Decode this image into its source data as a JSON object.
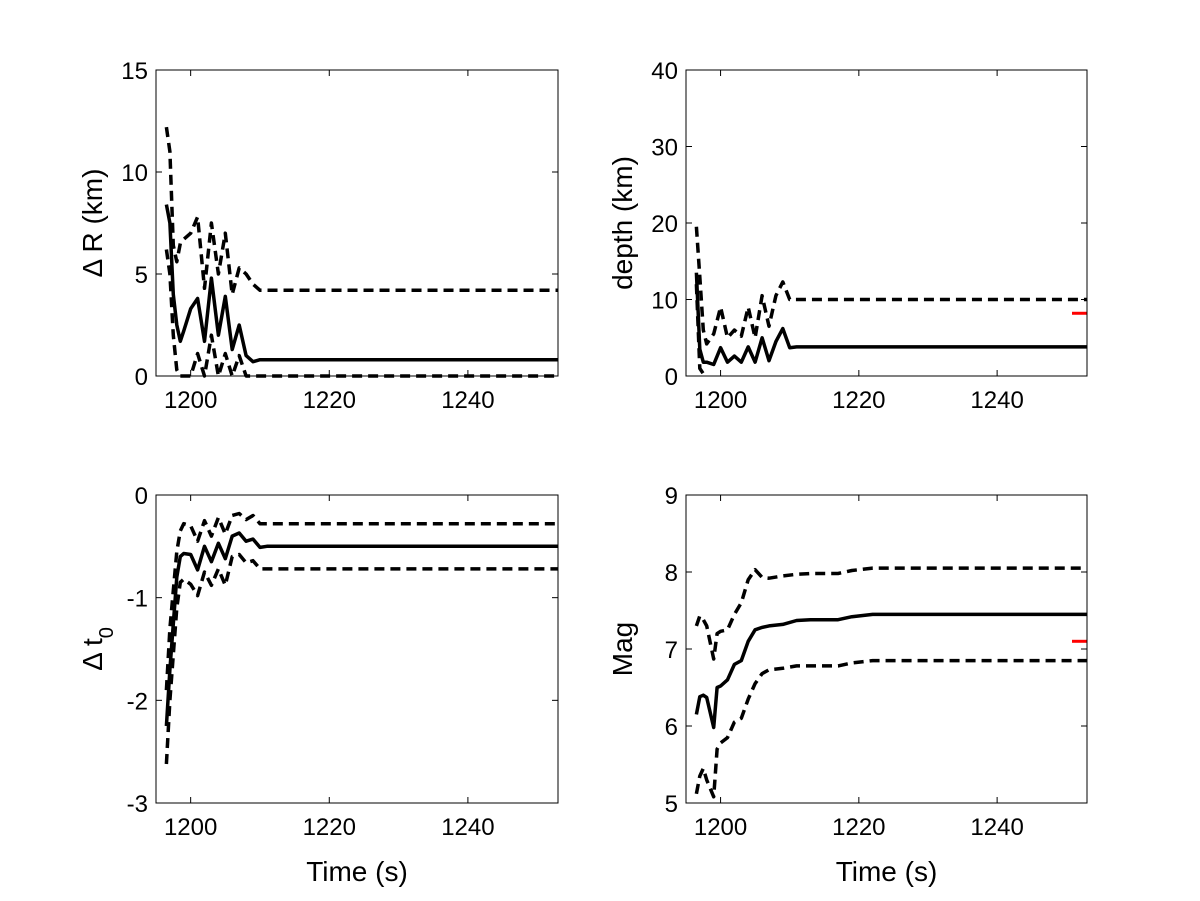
{
  "chart_data": [
    {
      "type": "line",
      "id": "delta-r",
      "ylabel": "Δ R (km)",
      "xlabel": "",
      "xlim": [
        1195,
        1253
      ],
      "ylim": [
        0,
        15
      ],
      "xticks": [
        1200,
        1220,
        1240
      ],
      "yticks": [
        0,
        5,
        10,
        15
      ],
      "grid": false,
      "series": [
        {
          "style": "solid",
          "points": [
            [
              1196.5,
              8.4
            ],
            [
              1197,
              7.5
            ],
            [
              1197.5,
              4.0
            ],
            [
              1198,
              2.5
            ],
            [
              1198.5,
              1.7
            ],
            [
              1199,
              2.2
            ],
            [
              1200,
              3.3
            ],
            [
              1201,
              3.8
            ],
            [
              1202,
              1.7
            ],
            [
              1203,
              4.8
            ],
            [
              1204,
              2.0
            ],
            [
              1205,
              3.9
            ],
            [
              1206,
              1.3
            ],
            [
              1207,
              2.5
            ],
            [
              1208,
              1.0
            ],
            [
              1209,
              0.7
            ],
            [
              1210,
              0.8
            ],
            [
              1211,
              0.8
            ],
            [
              1253,
              0.8
            ]
          ]
        },
        {
          "style": "dashed",
          "points": [
            [
              1196.5,
              12.2
            ],
            [
              1197,
              11.0
            ],
            [
              1197.5,
              6.4
            ],
            [
              1198,
              5.6
            ],
            [
              1198.5,
              6.5
            ],
            [
              1199,
              6.7
            ],
            [
              1200,
              7.0
            ],
            [
              1201,
              7.8
            ],
            [
              1202,
              4.3
            ],
            [
              1203,
              7.5
            ],
            [
              1204,
              5.0
            ],
            [
              1205,
              7.0
            ],
            [
              1206,
              4.0
            ],
            [
              1207,
              5.3
            ],
            [
              1208,
              5.0
            ],
            [
              1209,
              4.5
            ],
            [
              1210,
              4.2
            ],
            [
              1253,
              4.2
            ]
          ]
        },
        {
          "style": "dashed",
          "points": [
            [
              1196.5,
              6.2
            ],
            [
              1197,
              5.0
            ],
            [
              1197.5,
              2.0
            ],
            [
              1198,
              0.3
            ],
            [
              1198.5,
              0.0
            ],
            [
              1200,
              0.0
            ],
            [
              1201,
              1.1
            ],
            [
              1202,
              0.0
            ],
            [
              1203,
              2.0
            ],
            [
              1204,
              0.0
            ],
            [
              1205,
              1.1
            ],
            [
              1206,
              0.0
            ],
            [
              1207,
              1.0
            ],
            [
              1208,
              0.0
            ],
            [
              1253,
              0.0
            ]
          ]
        }
      ]
    },
    {
      "type": "line",
      "id": "depth",
      "ylabel": "depth (km)",
      "xlabel": "",
      "xlim": [
        1195,
        1253
      ],
      "ylim": [
        0,
        40
      ],
      "xticks": [
        1200,
        1220,
        1240
      ],
      "yticks": [
        0,
        10,
        20,
        30,
        40
      ],
      "grid": false,
      "reference_value": 8.2,
      "reference_color": "#ff0000",
      "series": [
        {
          "style": "solid",
          "points": [
            [
              1196.5,
              13.5
            ],
            [
              1197,
              3.5
            ],
            [
              1197.5,
              1.8
            ],
            [
              1198,
              1.8
            ],
            [
              1199,
              1.5
            ],
            [
              1200,
              3.7
            ],
            [
              1201,
              1.8
            ],
            [
              1202,
              2.6
            ],
            [
              1203,
              1.8
            ],
            [
              1204,
              3.8
            ],
            [
              1205,
              1.8
            ],
            [
              1206,
              5.0
            ],
            [
              1207,
              2.0
            ],
            [
              1208,
              4.5
            ],
            [
              1209,
              6.2
            ],
            [
              1210,
              3.7
            ],
            [
              1211,
              3.8
            ],
            [
              1253,
              3.8
            ]
          ]
        },
        {
          "style": "dashed",
          "points": [
            [
              1196.5,
              19.5
            ],
            [
              1197,
              13.0
            ],
            [
              1197.5,
              6.0
            ],
            [
              1198,
              4.2
            ],
            [
              1199,
              5.5
            ],
            [
              1200,
              9.0
            ],
            [
              1201,
              5.0
            ],
            [
              1202,
              6.0
            ],
            [
              1203,
              5.2
            ],
            [
              1204,
              9.0
            ],
            [
              1205,
              5.0
            ],
            [
              1206,
              10.5
            ],
            [
              1207,
              6.5
            ],
            [
              1208,
              10.5
            ],
            [
              1209,
              12.3
            ],
            [
              1210,
              10.0
            ],
            [
              1253,
              10.0
            ]
          ]
        },
        {
          "style": "dashed",
          "points": [
            [
              1196.5,
              12.0
            ],
            [
              1197,
              1.0
            ],
            [
              1197.5,
              0.3
            ],
            [
              1198,
              0.0
            ]
          ]
        }
      ]
    },
    {
      "type": "line",
      "id": "delta-t0",
      "ylabel": "Δ t0",
      "xlabel": "Time (s)",
      "xlim": [
        1195,
        1253
      ],
      "ylim": [
        -3,
        0
      ],
      "xticks": [
        1200,
        1220,
        1240
      ],
      "yticks": [
        -3,
        -2,
        -1,
        0
      ],
      "grid": false,
      "series": [
        {
          "style": "solid",
          "points": [
            [
              1196.5,
              -2.25
            ],
            [
              1197,
              -1.7
            ],
            [
              1198,
              -0.8
            ],
            [
              1198.5,
              -0.6
            ],
            [
              1199,
              -0.57
            ],
            [
              1200,
              -0.58
            ],
            [
              1201,
              -0.73
            ],
            [
              1202,
              -0.5
            ],
            [
              1203,
              -0.65
            ],
            [
              1204,
              -0.47
            ],
            [
              1205,
              -0.62
            ],
            [
              1206,
              -0.4
            ],
            [
              1207,
              -0.37
            ],
            [
              1208,
              -0.45
            ],
            [
              1209,
              -0.43
            ],
            [
              1210,
              -0.51
            ],
            [
              1211,
              -0.5
            ],
            [
              1253,
              -0.5
            ]
          ]
        },
        {
          "style": "dashed",
          "points": [
            [
              1196.5,
              -1.9
            ],
            [
              1197,
              -1.3
            ],
            [
              1198,
              -0.55
            ],
            [
              1198.5,
              -0.35
            ],
            [
              1199,
              -0.28
            ],
            [
              1200,
              -0.3
            ],
            [
              1201,
              -0.45
            ],
            [
              1202,
              -0.25
            ],
            [
              1203,
              -0.4
            ],
            [
              1204,
              -0.22
            ],
            [
              1205,
              -0.38
            ],
            [
              1206,
              -0.2
            ],
            [
              1207,
              -0.18
            ],
            [
              1208,
              -0.24
            ],
            [
              1209,
              -0.2
            ],
            [
              1210,
              -0.28
            ],
            [
              1253,
              -0.28
            ]
          ]
        },
        {
          "style": "dashed",
          "points": [
            [
              1196.5,
              -2.62
            ],
            [
              1197,
              -2.0
            ],
            [
              1198,
              -1.1
            ],
            [
              1198.5,
              -0.85
            ],
            [
              1199,
              -0.82
            ],
            [
              1200,
              -0.87
            ],
            [
              1201,
              -0.98
            ],
            [
              1202,
              -0.75
            ],
            [
              1203,
              -0.88
            ],
            [
              1204,
              -0.72
            ],
            [
              1205,
              -0.88
            ],
            [
              1206,
              -0.6
            ],
            [
              1207,
              -0.58
            ],
            [
              1208,
              -0.66
            ],
            [
              1209,
              -0.64
            ],
            [
              1210,
              -0.72
            ],
            [
              1253,
              -0.72
            ]
          ]
        }
      ]
    },
    {
      "type": "line",
      "id": "mag",
      "ylabel": "Mag",
      "xlabel": "Time (s)",
      "xlim": [
        1195,
        1253
      ],
      "ylim": [
        5,
        9
      ],
      "xticks": [
        1200,
        1220,
        1240
      ],
      "yticks": [
        5,
        6,
        7,
        8,
        9
      ],
      "grid": false,
      "reference_value": 7.1,
      "reference_color": "#ff0000",
      "series": [
        {
          "style": "solid",
          "points": [
            [
              1196.5,
              6.15
            ],
            [
              1197,
              6.38
            ],
            [
              1197.5,
              6.4
            ],
            [
              1198,
              6.37
            ],
            [
              1199,
              5.98
            ],
            [
              1199.5,
              6.5
            ],
            [
              1200,
              6.52
            ],
            [
              1201,
              6.6
            ],
            [
              1202,
              6.8
            ],
            [
              1203,
              6.85
            ],
            [
              1204,
              7.1
            ],
            [
              1205,
              7.25
            ],
            [
              1206,
              7.28
            ],
            [
              1207,
              7.3
            ],
            [
              1209,
              7.32
            ],
            [
              1211,
              7.37
            ],
            [
              1213,
              7.38
            ],
            [
              1217,
              7.38
            ],
            [
              1219,
              7.42
            ],
            [
              1222,
              7.45
            ],
            [
              1253,
              7.45
            ]
          ]
        },
        {
          "style": "dashed",
          "points": [
            [
              1196.5,
              7.3
            ],
            [
              1197,
              7.43
            ],
            [
              1197.5,
              7.38
            ],
            [
              1198,
              7.3
            ],
            [
              1199,
              6.87
            ],
            [
              1199.5,
              7.2
            ],
            [
              1200,
              7.23
            ],
            [
              1201,
              7.25
            ],
            [
              1202,
              7.45
            ],
            [
              1203,
              7.6
            ],
            [
              1204,
              7.9
            ],
            [
              1205,
              8.03
            ],
            [
              1206,
              7.93
            ],
            [
              1207,
              7.92
            ],
            [
              1209,
              7.95
            ],
            [
              1211,
              7.97
            ],
            [
              1213,
              7.98
            ],
            [
              1217,
              7.98
            ],
            [
              1219,
              8.02
            ],
            [
              1222,
              8.05
            ],
            [
              1253,
              8.05
            ]
          ]
        },
        {
          "style": "dashed",
          "points": [
            [
              1196.5,
              5.12
            ],
            [
              1197,
              5.35
            ],
            [
              1197.5,
              5.45
            ],
            [
              1198,
              5.3
            ],
            [
              1199,
              5.08
            ],
            [
              1199.5,
              5.7
            ],
            [
              1200,
              5.78
            ],
            [
              1201,
              5.85
            ],
            [
              1202,
              6.05
            ],
            [
              1203,
              6.1
            ],
            [
              1204,
              6.35
            ],
            [
              1205,
              6.55
            ],
            [
              1206,
              6.68
            ],
            [
              1207,
              6.73
            ],
            [
              1209,
              6.75
            ],
            [
              1211,
              6.78
            ],
            [
              1213,
              6.78
            ],
            [
              1217,
              6.78
            ],
            [
              1219,
              6.82
            ],
            [
              1222,
              6.85
            ],
            [
              1253,
              6.85
            ]
          ]
        }
      ]
    }
  ]
}
